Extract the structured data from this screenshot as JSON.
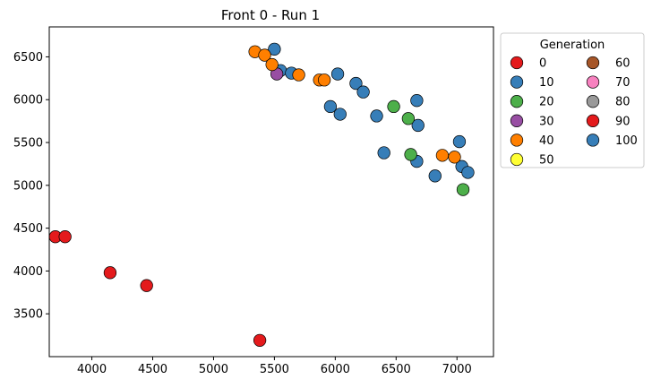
{
  "chart_data": {
    "type": "scatter",
    "title": "Front 0 - Run 1",
    "xlabel": "",
    "ylabel": "",
    "xlim": [
      3650,
      7300
    ],
    "ylim": [
      3000,
      6850
    ],
    "x_ticks": [
      4000,
      4500,
      5000,
      5500,
      6000,
      6500,
      7000
    ],
    "y_ticks": [
      3500,
      4000,
      4500,
      5000,
      5500,
      6000,
      6500
    ],
    "grid": false,
    "legend": {
      "title": "Generation",
      "placement": "outside-top-right",
      "columns": 2
    },
    "series": [
      {
        "name": "0",
        "color": "#e41a1c",
        "points": [
          [
            3700,
            4400
          ],
          [
            3780,
            4400
          ],
          [
            4150,
            3980
          ],
          [
            4450,
            3830
          ],
          [
            5380,
            3190
          ]
        ]
      },
      {
        "name": "10",
        "color": "#377eb8",
        "points": [
          [
            5500,
            6590
          ],
          [
            5550,
            6340
          ],
          [
            5640,
            6310
          ],
          [
            6020,
            6300
          ],
          [
            6170,
            6190
          ],
          [
            6230,
            6090
          ],
          [
            5960,
            5920
          ],
          [
            6040,
            5830
          ],
          [
            6340,
            5810
          ],
          [
            6670,
            5990
          ],
          [
            6680,
            5700
          ],
          [
            6400,
            5380
          ],
          [
            6670,
            5280
          ],
          [
            6820,
            5110
          ],
          [
            7020,
            5510
          ],
          [
            7040,
            5220
          ],
          [
            7090,
            5150
          ]
        ]
      },
      {
        "name": "20",
        "color": "#4daf4a",
        "points": [
          [
            6480,
            5920
          ],
          [
            6600,
            5780
          ],
          [
            6620,
            5360
          ],
          [
            7050,
            4950
          ]
        ]
      },
      {
        "name": "30",
        "color": "#984ea3",
        "points": [
          [
            5520,
            6300
          ]
        ]
      },
      {
        "name": "40",
        "color": "#ff7f00",
        "points": [
          [
            5340,
            6560
          ],
          [
            5420,
            6520
          ],
          [
            5480,
            6410
          ],
          [
            5700,
            6290
          ],
          [
            5870,
            6230
          ],
          [
            5910,
            6230
          ],
          [
            6880,
            5350
          ],
          [
            6980,
            5330
          ]
        ]
      },
      {
        "name": "50",
        "color": "#ffff33",
        "points": []
      },
      {
        "name": "60",
        "color": "#a65628",
        "points": []
      },
      {
        "name": "70",
        "color": "#f781bf",
        "points": []
      },
      {
        "name": "80",
        "color": "#999999",
        "points": []
      },
      {
        "name": "90",
        "color": "#e41a1c",
        "points": []
      },
      {
        "name": "100",
        "color": "#377eb8",
        "points": []
      }
    ]
  }
}
